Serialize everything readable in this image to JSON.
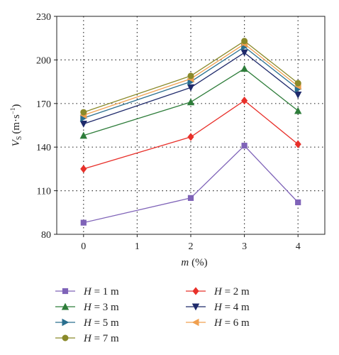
{
  "chart_data": {
    "type": "line",
    "x": [
      0,
      2,
      3,
      4
    ],
    "xlabel": {
      "var": "m",
      "unit": "(%)"
    },
    "ylabel": {
      "var": "V",
      "sub": "S",
      "unit_pre": "(m·s",
      "unit_sup": "−1",
      "unit_post": ")"
    },
    "xlim": [
      -0.5,
      4.5
    ],
    "ylim": [
      80,
      230
    ],
    "xticks": [
      0,
      1,
      2,
      3,
      4
    ],
    "yticks": [
      80,
      110,
      140,
      170,
      200,
      230
    ],
    "xtick_labels": [
      "0",
      "1",
      "2",
      "3",
      "4"
    ],
    "ytick_labels": [
      "80",
      "110",
      "140",
      "170",
      "200",
      "230"
    ],
    "grid": true,
    "legend_position": "bottom",
    "series": [
      {
        "name": {
          "var": "H",
          "rest": " = 1 m"
        },
        "color": "#7f63b8",
        "marker": "square",
        "values": [
          88,
          105,
          141,
          102
        ]
      },
      {
        "name": {
          "var": "H",
          "rest": " = 2 m"
        },
        "color": "#e8302a",
        "marker": "diamond",
        "values": [
          125,
          147,
          172,
          142
        ]
      },
      {
        "name": {
          "var": "H",
          "rest": " = 3 m"
        },
        "color": "#2e7d3a",
        "marker": "triangle-up",
        "values": [
          148,
          171,
          194,
          165
        ]
      },
      {
        "name": {
          "var": "H",
          "rest": " = 4 m"
        },
        "color": "#1f2a6b",
        "marker": "triangle-down",
        "values": [
          156,
          181,
          205,
          176
        ]
      },
      {
        "name": {
          "var": "H",
          "rest": " = 5 m"
        },
        "color": "#2a6f8f",
        "marker": "triangle-right",
        "values": [
          160,
          185,
          209,
          180
        ]
      },
      {
        "name": {
          "var": "H",
          "rest": " = 6 m"
        },
        "color": "#f0a050",
        "marker": "triangle-left",
        "values": [
          162,
          187,
          211,
          182
        ]
      },
      {
        "name": {
          "var": "H",
          "rest": " = 7 m"
        },
        "color": "#8a8a2a",
        "marker": "circle",
        "values": [
          164,
          189,
          213,
          184
        ]
      }
    ]
  }
}
